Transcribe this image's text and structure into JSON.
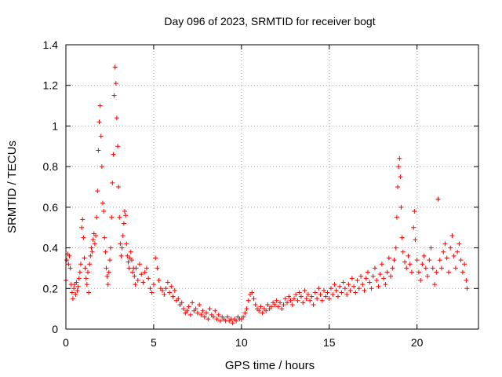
{
  "chart_data": {
    "type": "scatter",
    "title": "Day 096 of 2023, SRMTID for receiver bogt",
    "xlabel": "GPS time / hours",
    "ylabel": "SRMTID / TECUs",
    "xlim": [
      0,
      23.5
    ],
    "ylim": [
      0,
      1.4
    ],
    "x_ticks": [
      0,
      5,
      10,
      15,
      20
    ],
    "y_ticks": [
      0,
      0.2,
      0.4,
      0.6,
      0.8,
      1,
      1.2,
      1.4
    ],
    "x_tick_labels": [
      "0",
      "5",
      "10",
      "15",
      "20"
    ],
    "y_tick_labels": [
      "0",
      "0.2",
      "0.4",
      "0.6",
      "0.8",
      "1",
      "1.2",
      "1.4"
    ],
    "grid": true,
    "marker": "+",
    "series": [
      {
        "name": "SRMTID",
        "color": "#ff0000",
        "points": [
          [
            0.0,
            0.24
          ],
          [
            0.05,
            0.34
          ],
          [
            0.1,
            0.37
          ],
          [
            0.15,
            0.32
          ],
          [
            0.2,
            0.36
          ],
          [
            0.25,
            0.3
          ],
          [
            0.3,
            0.22
          ],
          [
            0.35,
            0.18
          ],
          [
            0.4,
            0.15
          ],
          [
            0.45,
            0.2
          ],
          [
            0.5,
            0.22
          ],
          [
            0.55,
            0.17
          ],
          [
            0.6,
            0.23
          ],
          [
            0.65,
            0.19
          ],
          [
            0.7,
            0.21
          ],
          [
            0.75,
            0.25
          ],
          [
            0.8,
            0.28
          ],
          [
            0.85,
            0.32
          ],
          [
            0.9,
            0.5
          ],
          [
            0.95,
            0.54
          ],
          [
            1.0,
            0.45
          ],
          [
            1.05,
            0.35
          ],
          [
            1.1,
            0.3
          ],
          [
            1.15,
            0.25
          ],
          [
            1.2,
            0.22
          ],
          [
            1.25,
            0.28
          ],
          [
            1.3,
            0.18
          ],
          [
            1.35,
            0.32
          ],
          [
            1.4,
            0.36
          ],
          [
            1.45,
            0.4
          ],
          [
            1.5,
            0.38
          ],
          [
            1.55,
            0.44
          ],
          [
            1.6,
            0.47
          ],
          [
            1.65,
            0.42
          ],
          [
            1.7,
            0.46
          ],
          [
            1.75,
            0.55
          ],
          [
            1.8,
            0.68
          ],
          [
            1.85,
            0.88
          ],
          [
            1.9,
            1.02
          ],
          [
            1.95,
            1.1
          ],
          [
            2.0,
            0.95
          ],
          [
            2.05,
            0.8
          ],
          [
            2.1,
            0.62
          ],
          [
            2.15,
            0.58
          ],
          [
            2.2,
            0.45
          ],
          [
            2.25,
            0.38
          ],
          [
            2.3,
            0.3
          ],
          [
            2.35,
            0.26
          ],
          [
            2.4,
            0.22
          ],
          [
            2.45,
            0.28
          ],
          [
            2.5,
            0.34
          ],
          [
            2.55,
            0.4
          ],
          [
            2.6,
            0.55
          ],
          [
            2.65,
            0.72
          ],
          [
            2.7,
            0.86
          ],
          [
            2.75,
            1.15
          ],
          [
            2.8,
            1.29
          ],
          [
            2.85,
            1.21
          ],
          [
            2.9,
            1.04
          ],
          [
            2.95,
            0.9
          ],
          [
            3.0,
            0.7
          ],
          [
            3.05,
            0.55
          ],
          [
            3.1,
            0.42
          ],
          [
            3.15,
            0.36
          ],
          [
            3.2,
            0.4
          ],
          [
            3.25,
            0.46
          ],
          [
            3.3,
            0.52
          ],
          [
            3.35,
            0.58
          ],
          [
            3.4,
            0.56
          ],
          [
            3.45,
            0.42
          ],
          [
            3.5,
            0.36
          ],
          [
            3.55,
            0.33
          ],
          [
            3.6,
            0.3
          ],
          [
            3.65,
            0.35
          ],
          [
            3.7,
            0.38
          ],
          [
            3.75,
            0.34
          ],
          [
            3.8,
            0.28
          ],
          [
            3.85,
            0.3
          ],
          [
            3.9,
            0.26
          ],
          [
            3.95,
            0.22
          ],
          [
            4.0,
            0.3
          ],
          [
            4.1,
            0.24
          ],
          [
            4.2,
            0.32
          ],
          [
            4.3,
            0.27
          ],
          [
            4.4,
            0.23
          ],
          [
            4.5,
            0.28
          ],
          [
            4.6,
            0.3
          ],
          [
            4.7,
            0.25
          ],
          [
            4.8,
            0.2
          ],
          [
            4.9,
            0.18
          ],
          [
            5.0,
            0.22
          ],
          [
            5.1,
            0.35
          ],
          [
            5.2,
            0.3
          ],
          [
            5.3,
            0.24
          ],
          [
            5.4,
            0.2
          ],
          [
            5.5,
            0.19
          ],
          [
            5.6,
            0.17
          ],
          [
            5.7,
            0.2
          ],
          [
            5.8,
            0.23
          ],
          [
            5.9,
            0.18
          ],
          [
            6.0,
            0.21
          ],
          [
            6.1,
            0.16
          ],
          [
            6.2,
            0.19
          ],
          [
            6.3,
            0.14
          ],
          [
            6.4,
            0.15
          ],
          [
            6.5,
            0.12
          ],
          [
            6.6,
            0.13
          ],
          [
            6.7,
            0.1
          ],
          [
            6.8,
            0.08
          ],
          [
            6.9,
            0.09
          ],
          [
            7.0,
            0.11
          ],
          [
            7.1,
            0.07
          ],
          [
            7.2,
            0.13
          ],
          [
            7.3,
            0.09
          ],
          [
            7.4,
            0.1
          ],
          [
            7.5,
            0.08
          ],
          [
            7.6,
            0.12
          ],
          [
            7.7,
            0.07
          ],
          [
            7.8,
            0.09
          ],
          [
            7.9,
            0.06
          ],
          [
            8.0,
            0.08
          ],
          [
            8.1,
            0.05
          ],
          [
            8.2,
            0.1
          ],
          [
            8.3,
            0.07
          ],
          [
            8.4,
            0.06
          ],
          [
            8.5,
            0.09
          ],
          [
            8.6,
            0.05
          ],
          [
            8.7,
            0.07
          ],
          [
            8.8,
            0.04
          ],
          [
            8.9,
            0.06
          ],
          [
            9.0,
            0.05
          ],
          [
            9.1,
            0.04
          ],
          [
            9.2,
            0.06
          ],
          [
            9.3,
            0.04
          ],
          [
            9.4,
            0.05
          ],
          [
            9.5,
            0.03
          ],
          [
            9.6,
            0.05
          ],
          [
            9.7,
            0.04
          ],
          [
            9.8,
            0.06
          ],
          [
            9.9,
            0.05
          ],
          [
            10.0,
            0.05
          ],
          [
            10.1,
            0.06
          ],
          [
            10.2,
            0.08
          ],
          [
            10.3,
            0.1
          ],
          [
            10.4,
            0.14
          ],
          [
            10.5,
            0.17
          ],
          [
            10.6,
            0.18
          ],
          [
            10.7,
            0.15
          ],
          [
            10.8,
            0.12
          ],
          [
            10.9,
            0.1
          ],
          [
            11.0,
            0.09
          ],
          [
            11.1,
            0.11
          ],
          [
            11.2,
            0.08
          ],
          [
            11.3,
            0.1
          ],
          [
            11.4,
            0.09
          ],
          [
            11.5,
            0.12
          ],
          [
            11.6,
            0.1
          ],
          [
            11.7,
            0.11
          ],
          [
            11.8,
            0.13
          ],
          [
            11.9,
            0.12
          ],
          [
            12.0,
            0.14
          ],
          [
            12.1,
            0.11
          ],
          [
            12.2,
            0.13
          ],
          [
            12.3,
            0.1
          ],
          [
            12.4,
            0.12
          ],
          [
            12.5,
            0.15
          ],
          [
            12.6,
            0.13
          ],
          [
            12.7,
            0.16
          ],
          [
            12.8,
            0.14
          ],
          [
            12.9,
            0.12
          ],
          [
            13.0,
            0.15
          ],
          [
            13.1,
            0.17
          ],
          [
            13.2,
            0.14
          ],
          [
            13.3,
            0.18
          ],
          [
            13.4,
            0.16
          ],
          [
            13.5,
            0.13
          ],
          [
            13.6,
            0.19
          ],
          [
            13.7,
            0.15
          ],
          [
            13.8,
            0.17
          ],
          [
            13.9,
            0.14
          ],
          [
            14.0,
            0.16
          ],
          [
            14.1,
            0.12
          ],
          [
            14.2,
            0.18
          ],
          [
            14.3,
            0.15
          ],
          [
            14.4,
            0.2
          ],
          [
            14.5,
            0.17
          ],
          [
            14.6,
            0.14
          ],
          [
            14.7,
            0.19
          ],
          [
            14.8,
            0.16
          ],
          [
            14.9,
            0.18
          ],
          [
            15.0,
            0.15
          ],
          [
            15.1,
            0.2
          ],
          [
            15.2,
            0.17
          ],
          [
            15.3,
            0.22
          ],
          [
            15.4,
            0.19
          ],
          [
            15.5,
            0.16
          ],
          [
            15.6,
            0.21
          ],
          [
            15.7,
            0.18
          ],
          [
            15.8,
            0.23
          ],
          [
            15.9,
            0.2
          ],
          [
            16.0,
            0.17
          ],
          [
            16.1,
            0.22
          ],
          [
            16.2,
            0.19
          ],
          [
            16.3,
            0.25
          ],
          [
            16.4,
            0.21
          ],
          [
            16.5,
            0.18
          ],
          [
            16.6,
            0.24
          ],
          [
            16.7,
            0.2
          ],
          [
            16.8,
            0.26
          ],
          [
            16.9,
            0.22
          ],
          [
            17.0,
            0.19
          ],
          [
            17.1,
            0.25
          ],
          [
            17.2,
            0.28
          ],
          [
            17.3,
            0.23
          ],
          [
            17.4,
            0.2
          ],
          [
            17.5,
            0.26
          ],
          [
            17.6,
            0.3
          ],
          [
            17.7,
            0.24
          ],
          [
            17.8,
            0.21
          ],
          [
            17.9,
            0.27
          ],
          [
            18.0,
            0.32
          ],
          [
            18.1,
            0.25
          ],
          [
            18.2,
            0.22
          ],
          [
            18.3,
            0.28
          ],
          [
            18.4,
            0.35
          ],
          [
            18.5,
            0.26
          ],
          [
            18.6,
            0.3
          ],
          [
            18.7,
            0.34
          ],
          [
            18.8,
            0.4
          ],
          [
            18.85,
            0.55
          ],
          [
            18.9,
            0.7
          ],
          [
            18.95,
            0.8
          ],
          [
            19.0,
            0.84
          ],
          [
            19.05,
            0.75
          ],
          [
            19.1,
            0.6
          ],
          [
            19.15,
            0.45
          ],
          [
            19.2,
            0.38
          ],
          [
            19.3,
            0.33
          ],
          [
            19.4,
            0.3
          ],
          [
            19.5,
            0.36
          ],
          [
            19.6,
            0.32
          ],
          [
            19.7,
            0.28
          ],
          [
            19.8,
            0.5
          ],
          [
            19.85,
            0.58
          ],
          [
            19.9,
            0.44
          ],
          [
            20.0,
            0.34
          ],
          [
            20.1,
            0.28
          ],
          [
            20.2,
            0.24
          ],
          [
            20.3,
            0.32
          ],
          [
            20.4,
            0.36
          ],
          [
            20.5,
            0.3
          ],
          [
            20.6,
            0.26
          ],
          [
            20.7,
            0.34
          ],
          [
            20.8,
            0.4
          ],
          [
            20.9,
            0.3
          ],
          [
            21.0,
            0.22
          ],
          [
            21.1,
            0.28
          ],
          [
            21.2,
            0.64
          ],
          [
            21.3,
            0.34
          ],
          [
            21.4,
            0.3
          ],
          [
            21.5,
            0.38
          ],
          [
            21.6,
            0.42
          ],
          [
            21.7,
            0.35
          ],
          [
            21.8,
            0.28
          ],
          [
            21.9,
            0.4
          ],
          [
            22.0,
            0.46
          ],
          [
            22.1,
            0.36
          ],
          [
            22.2,
            0.3
          ],
          [
            22.3,
            0.38
          ],
          [
            22.4,
            0.42
          ],
          [
            22.5,
            0.34
          ],
          [
            22.6,
            0.28
          ],
          [
            22.7,
            0.32
          ],
          [
            22.8,
            0.24
          ],
          [
            22.85,
            0.2
          ]
        ]
      }
    ]
  }
}
